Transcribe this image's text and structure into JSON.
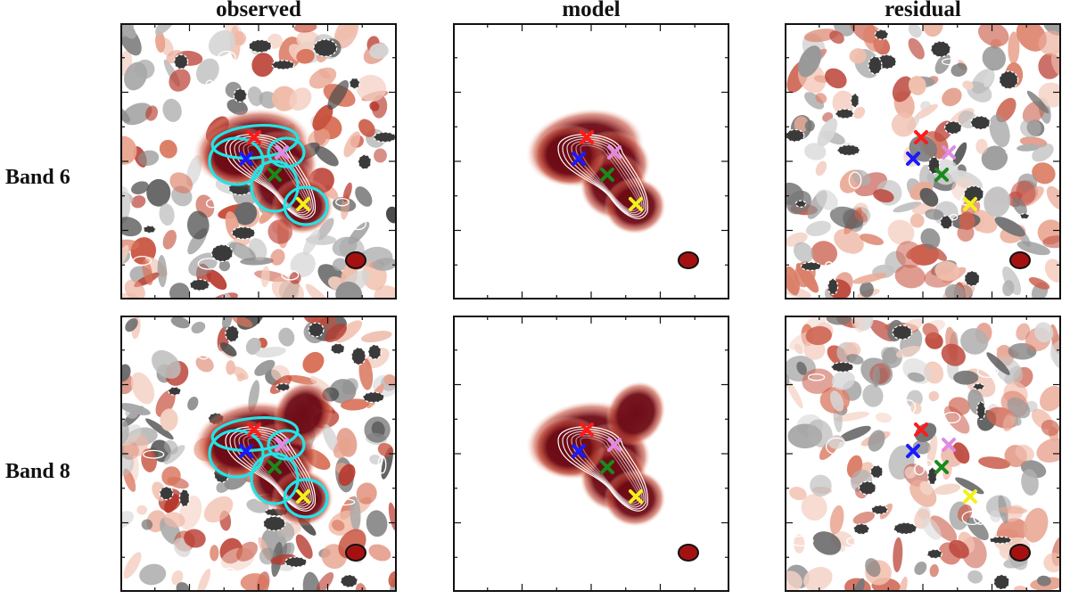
{
  "columns": [
    "observed",
    "model",
    "residual"
  ],
  "rows": [
    "Band 6",
    "Band 8"
  ],
  "colors": {
    "map_high": "#6e0b16",
    "map_mid": "#d9735a",
    "map_low": "#555555",
    "contour": "#ffffff",
    "aperture": "#22e3e6",
    "beam": "#a51111",
    "frame": "#111111"
  },
  "markers": [
    {
      "name": "red",
      "color": "#ff1a1a"
    },
    {
      "name": "blue",
      "color": "#1a1aff"
    },
    {
      "name": "violet",
      "color": "#e08ae0"
    },
    {
      "name": "green",
      "color": "#1a8a1a"
    },
    {
      "name": "yellow",
      "color": "#f2f21a"
    }
  ]
}
